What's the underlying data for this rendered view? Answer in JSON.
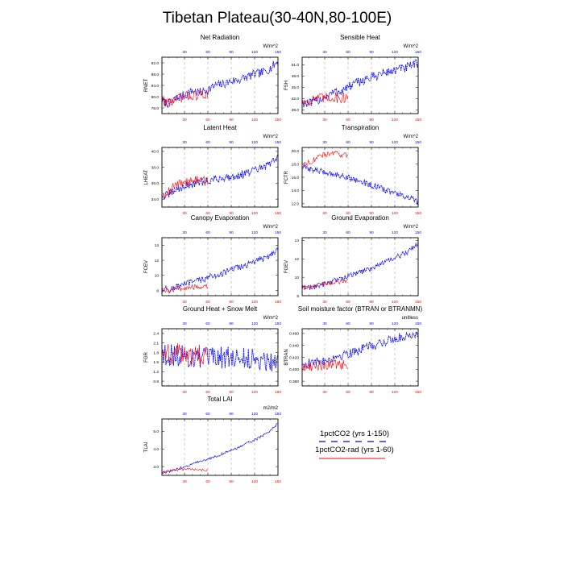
{
  "figure": {
    "title": "Tibetan Plateau(30-40N,80-100E)"
  },
  "legend": {
    "items": [
      {
        "label": "1pctCO2 (yrs 1-150)",
        "color": "#0000ff",
        "dashed": true
      },
      {
        "label": "1pctCO2-rad (yrs 1-60)",
        "color": "#ff0000",
        "dashed": false
      }
    ]
  },
  "colors": {
    "series_a": "#0000ff",
    "series_b": "#ff0000",
    "grid": "#aaaaaa"
  },
  "chart_data": [
    {
      "type": "line",
      "title": "Net Radiation",
      "units": "W/m^2",
      "ylabel": "RNET",
      "xlim": [
        1,
        150
      ],
      "xticks": [
        30,
        60,
        90,
        120,
        150
      ],
      "ylim": [
        74,
        94
      ],
      "yticks": [
        "76.0",
        "80.0",
        "84.0",
        "88.0",
        "92.0"
      ],
      "series": [
        {
          "name": "1pctCO2 (yrs 1-150)",
          "anchors": [
            [
              1,
              78.5
            ],
            [
              10,
              77.5
            ],
            [
              20,
              79.5
            ],
            [
              30,
              80.5
            ],
            [
              40,
              82.0
            ],
            [
              50,
              81.5
            ],
            [
              60,
              82.5
            ],
            [
              70,
              84.0
            ],
            [
              80,
              84.5
            ],
            [
              90,
              85.5
            ],
            [
              100,
              86.0
            ],
            [
              110,
              87.0
            ],
            [
              120,
              88.0
            ],
            [
              130,
              88.5
            ],
            [
              140,
              90.0
            ],
            [
              150,
              92.5
            ]
          ],
          "noise": 1.6
        },
        {
          "name": "1pctCO2-rad (yrs 1-60)",
          "anchors": [
            [
              1,
              78.5
            ],
            [
              10,
              78.0
            ],
            [
              20,
              79.0
            ],
            [
              30,
              80.0
            ],
            [
              40,
              80.5
            ],
            [
              50,
              80.5
            ],
            [
              60,
              81.0
            ]
          ],
          "noise": 1.8
        }
      ]
    },
    {
      "type": "line",
      "title": "Sensible Heat",
      "units": "W/m^2",
      "ylabel": "FSH",
      "xlim": [
        1,
        150
      ],
      "xticks": [
        30,
        60,
        90,
        120,
        150
      ],
      "ylim": [
        38,
        53
      ],
      "yticks": [
        "39.0",
        "42.0",
        "45.0",
        "48.0",
        "51.0"
      ],
      "series": [
        {
          "name": "1pctCO2 (yrs 1-150)",
          "anchors": [
            [
              1,
              41.0
            ],
            [
              10,
              40.5
            ],
            [
              20,
              41.5
            ],
            [
              30,
              42.5
            ],
            [
              40,
              43.5
            ],
            [
              50,
              44.0
            ],
            [
              60,
              45.0
            ],
            [
              70,
              46.0
            ],
            [
              80,
              47.0
            ],
            [
              90,
              47.5
            ],
            [
              100,
              48.5
            ],
            [
              110,
              49.0
            ],
            [
              120,
              49.5
            ],
            [
              130,
              50.0
            ],
            [
              140,
              50.5
            ],
            [
              150,
              51.5
            ]
          ],
          "noise": 1.3
        },
        {
          "name": "1pctCO2-rad (yrs 1-60)",
          "anchors": [
            [
              1,
              41.0
            ],
            [
              10,
              41.5
            ],
            [
              20,
              42.0
            ],
            [
              30,
              42.0
            ],
            [
              40,
              42.5
            ],
            [
              50,
              42.0
            ],
            [
              60,
              42.5
            ]
          ],
          "noise": 1.5
        }
      ]
    },
    {
      "type": "line",
      "title": "Latent Heat",
      "units": "W/m^2",
      "ylabel": "LHEAT",
      "xlim": [
        1,
        150
      ],
      "xticks": [
        30,
        60,
        90,
        120,
        150
      ],
      "ylim": [
        33,
        40.5
      ],
      "yticks": [
        "34.0",
        "36.0",
        "38.0",
        "40.0"
      ],
      "series": [
        {
          "name": "1pctCO2 (yrs 1-150)",
          "anchors": [
            [
              1,
              34.3
            ],
            [
              10,
              34.6
            ],
            [
              20,
              35.2
            ],
            [
              30,
              35.6
            ],
            [
              40,
              35.9
            ],
            [
              50,
              36.1
            ],
            [
              60,
              36.3
            ],
            [
              70,
              36.5
            ],
            [
              80,
              36.7
            ],
            [
              90,
              36.8
            ],
            [
              100,
              37.0
            ],
            [
              110,
              37.3
            ],
            [
              120,
              37.6
            ],
            [
              130,
              37.9
            ],
            [
              140,
              38.4
            ],
            [
              150,
              39.5
            ]
          ],
          "noise": 0.5
        },
        {
          "name": "1pctCO2-rad (yrs 1-60)",
          "anchors": [
            [
              1,
              34.5
            ],
            [
              10,
              35.0
            ],
            [
              20,
              35.8
            ],
            [
              30,
              36.2
            ],
            [
              40,
              36.3
            ],
            [
              50,
              36.4
            ],
            [
              60,
              36.2
            ]
          ],
          "noise": 0.6
        }
      ]
    },
    {
      "type": "line",
      "title": "Transpiration",
      "units": "W/m^2",
      "ylabel": "FCTR",
      "xlim": [
        1,
        150
      ],
      "xticks": [
        30,
        60,
        90,
        120,
        150
      ],
      "ylim": [
        11.5,
        20.5
      ],
      "yticks": [
        "12.0",
        "14.0",
        "16.0",
        "18.0",
        "20.0"
      ],
      "series": [
        {
          "name": "1pctCO2 (yrs 1-150)",
          "anchors": [
            [
              1,
              17.5
            ],
            [
              10,
              17.3
            ],
            [
              20,
              17.0
            ],
            [
              30,
              16.8
            ],
            [
              40,
              16.5
            ],
            [
              50,
              16.3
            ],
            [
              60,
              16.0
            ],
            [
              70,
              15.6
            ],
            [
              80,
              15.2
            ],
            [
              90,
              14.8
            ],
            [
              100,
              14.4
            ],
            [
              110,
              14.0
            ],
            [
              120,
              13.6
            ],
            [
              130,
              13.2
            ],
            [
              140,
              12.8
            ],
            [
              150,
              12.3
            ]
          ],
          "noise": 0.45
        },
        {
          "name": "1pctCO2-rad (yrs 1-60)",
          "anchors": [
            [
              1,
              17.8
            ],
            [
              10,
              18.3
            ],
            [
              20,
              18.9
            ],
            [
              30,
              19.4
            ],
            [
              40,
              19.6
            ],
            [
              50,
              19.5
            ],
            [
              60,
              19.2
            ]
          ],
          "noise": 0.45
        }
      ]
    },
    {
      "type": "line",
      "title": "Canopy Evaporation",
      "units": "W/m^2",
      "ylabel": "FCEV",
      "xlim": [
        1,
        150
      ],
      "xticks": [
        30,
        60,
        90,
        120,
        150
      ],
      "ylim": [
        7.3,
        15
      ],
      "yticks": [
        "8",
        "10",
        "12",
        "14"
      ],
      "series": [
        {
          "name": "1pctCO2 (yrs 1-150)",
          "anchors": [
            [
              1,
              8.2
            ],
            [
              10,
              8.1
            ],
            [
              20,
              8.5
            ],
            [
              30,
              8.8
            ],
            [
              40,
              9.1
            ],
            [
              50,
              9.4
            ],
            [
              60,
              9.7
            ],
            [
              70,
              10.0
            ],
            [
              80,
              10.3
            ],
            [
              90,
              10.7
            ],
            [
              100,
              11.1
            ],
            [
              110,
              11.4
            ],
            [
              120,
              11.8
            ],
            [
              130,
              12.2
            ],
            [
              140,
              12.7
            ],
            [
              150,
              13.6
            ]
          ],
          "noise": 0.45
        },
        {
          "name": "1pctCO2-rad (yrs 1-60)",
          "anchors": [
            [
              1,
              8.0
            ],
            [
              10,
              8.0
            ],
            [
              20,
              8.2
            ],
            [
              30,
              8.3
            ],
            [
              40,
              8.4
            ],
            [
              50,
              8.5
            ],
            [
              60,
              8.5
            ]
          ],
          "noise": 0.35
        }
      ]
    },
    {
      "type": "line",
      "title": "Ground Evaporation",
      "units": "W/m^2",
      "ylabel": "FGEV",
      "xlim": [
        1,
        150
      ],
      "xticks": [
        30,
        60,
        90,
        120,
        150
      ],
      "ylim": [
        8,
        14.3
      ],
      "yticks": [
        "8",
        "10",
        "12",
        "14"
      ],
      "series": [
        {
          "name": "1pctCO2 (yrs 1-150)",
          "anchors": [
            [
              1,
              8.8
            ],
            [
              10,
              8.9
            ],
            [
              20,
              9.0
            ],
            [
              30,
              9.3
            ],
            [
              40,
              9.6
            ],
            [
              50,
              9.8
            ],
            [
              60,
              10.1
            ],
            [
              70,
              10.4
            ],
            [
              80,
              10.7
            ],
            [
              90,
              11.0
            ],
            [
              100,
              11.4
            ],
            [
              110,
              11.7
            ],
            [
              120,
              12.1
            ],
            [
              130,
              12.5
            ],
            [
              140,
              12.9
            ],
            [
              150,
              13.8
            ]
          ],
          "noise": 0.3
        },
        {
          "name": "1pctCO2-rad (yrs 1-60)",
          "anchors": [
            [
              1,
              8.8
            ],
            [
              10,
              8.9
            ],
            [
              20,
              9.1
            ],
            [
              30,
              9.3
            ],
            [
              40,
              9.4
            ],
            [
              50,
              9.5
            ],
            [
              60,
              9.6
            ]
          ],
          "noise": 0.25
        }
      ]
    },
    {
      "type": "line",
      "title": "Ground Heat + Snow Melt",
      "units": "W/m^2",
      "ylabel": "FGR",
      "xlim": [
        1,
        150
      ],
      "xticks": [
        30,
        60,
        90,
        120,
        150
      ],
      "ylim": [
        0.75,
        2.55
      ],
      "yticks": [
        "0.9",
        "1.2",
        "1.5",
        "1.8",
        "2.1",
        "2.4"
      ],
      "series": [
        {
          "name": "1pctCO2 (yrs 1-150)",
          "anchors": [
            [
              1,
              1.75
            ],
            [
              20,
              1.7
            ],
            [
              40,
              1.65
            ],
            [
              60,
              1.6
            ],
            [
              80,
              1.65
            ],
            [
              100,
              1.6
            ],
            [
              120,
              1.6
            ],
            [
              140,
              1.55
            ],
            [
              150,
              1.55
            ]
          ],
          "noise": 0.35
        },
        {
          "name": "1pctCO2-rad (yrs 1-60)",
          "anchors": [
            [
              1,
              1.8
            ],
            [
              20,
              1.75
            ],
            [
              40,
              1.7
            ],
            [
              60,
              1.75
            ]
          ],
          "noise": 0.35
        }
      ]
    },
    {
      "type": "line",
      "title": "Soil moisture factor (BTRAN or BTRANMN)",
      "units": "unitless",
      "ylabel": "BTRAN",
      "xlim": [
        1,
        150
      ],
      "xticks": [
        30,
        60,
        90,
        120,
        150
      ],
      "ylim": [
        0.372,
        0.468
      ],
      "yticks": [
        "0.380",
        "0.400",
        "0.420",
        "0.440",
        "0.460"
      ],
      "series": [
        {
          "name": "1pctCO2 (yrs 1-150)",
          "anchors": [
            [
              1,
              0.408
            ],
            [
              10,
              0.41
            ],
            [
              20,
              0.412
            ],
            [
              30,
              0.415
            ],
            [
              40,
              0.419
            ],
            [
              50,
              0.423
            ],
            [
              60,
              0.427
            ],
            [
              70,
              0.431
            ],
            [
              80,
              0.435
            ],
            [
              90,
              0.439
            ],
            [
              100,
              0.443
            ],
            [
              110,
              0.447
            ],
            [
              120,
              0.451
            ],
            [
              130,
              0.455
            ],
            [
              140,
              0.458
            ],
            [
              150,
              0.461
            ]
          ],
          "noise": 0.008
        },
        {
          "name": "1pctCO2-rad (yrs 1-60)",
          "anchors": [
            [
              1,
              0.402
            ],
            [
              10,
              0.405
            ],
            [
              20,
              0.407
            ],
            [
              30,
              0.407
            ],
            [
              40,
              0.408
            ],
            [
              50,
              0.408
            ],
            [
              60,
              0.409
            ]
          ],
          "noise": 0.009
        }
      ]
    },
    {
      "type": "line",
      "title": "Total LAI",
      "units": "m2/m2",
      "ylabel": "TLAI",
      "xlim": [
        1,
        150
      ],
      "xticks": [
        30,
        60,
        90,
        120,
        150
      ],
      "ylim": [
        2.5,
        5.7
      ],
      "yticks": [
        "3.0",
        "4.0",
        "5.0"
      ],
      "series": [
        {
          "name": "1pctCO2 (yrs 1-150)",
          "anchors": [
            [
              1,
              2.65
            ],
            [
              10,
              2.72
            ],
            [
              20,
              2.85
            ],
            [
              30,
              3.0
            ],
            [
              40,
              3.15
            ],
            [
              50,
              3.28
            ],
            [
              60,
              3.42
            ],
            [
              70,
              3.58
            ],
            [
              80,
              3.75
            ],
            [
              90,
              3.92
            ],
            [
              100,
              4.1
            ],
            [
              110,
              4.3
            ],
            [
              120,
              4.5
            ],
            [
              130,
              4.75
            ],
            [
              140,
              5.05
            ],
            [
              150,
              5.45
            ]
          ],
          "noise": 0.07
        },
        {
          "name": "1pctCO2-rad (yrs 1-60)",
          "anchors": [
            [
              1,
              2.65
            ],
            [
              10,
              2.75
            ],
            [
              20,
              2.8
            ],
            [
              30,
              2.85
            ],
            [
              40,
              2.85
            ],
            [
              50,
              2.8
            ],
            [
              60,
              2.8
            ]
          ],
          "noise": 0.07
        }
      ]
    }
  ]
}
